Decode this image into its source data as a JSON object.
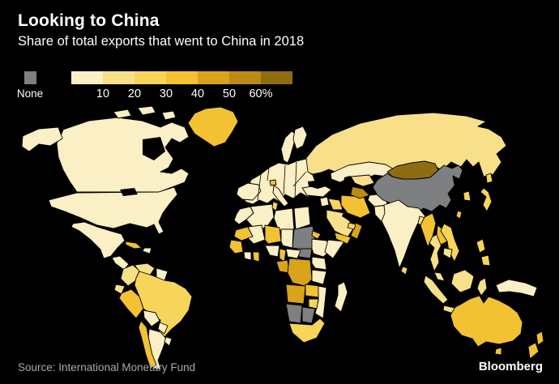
{
  "header": {
    "title": "Looking to China",
    "subtitle": "Share of total exports that went to China in 2018"
  },
  "legend": {
    "none_label": "None",
    "tick_labels": [
      "10",
      "20",
      "30",
      "40",
      "50",
      "60%"
    ]
  },
  "footer": {
    "source": "Source: International Monetary Fund",
    "brand": "Bloomberg"
  },
  "colors": {
    "background": "#000000",
    "none": "#7E7F81",
    "water": "#000000",
    "border": "#000000",
    "buckets": [
      "#FAEFC5",
      "#F8E08A",
      "#F7D45A",
      "#F2C233",
      "#D9A41B",
      "#BB8B15",
      "#8E6D10"
    ],
    "title_text": "#FFFFFF",
    "source_text": "#A9A9A9"
  },
  "chart_data": {
    "type": "choropleth_map",
    "title": "Looking to China",
    "subtitle": "Share of total exports that went to China in 2018",
    "unit": "percent of total exports going to China, 2018",
    "legend_bucket_ranges": [
      "0-10",
      "10-20",
      "20-30",
      "30-40",
      "40-50",
      "50-60",
      "60+"
    ],
    "no_data_color_is_background": true,
    "regions": {
      "greenland": {
        "name": "Greenland",
        "bucket": 3
      },
      "alaska": {
        "name": "Alaska (U.S.)",
        "bucket": 0
      },
      "canada": {
        "name": "Canada",
        "bucket": 0
      },
      "arctic-island-1": {
        "name": "Arctic islands",
        "bucket": 0
      },
      "arctic-island-2": {
        "name": "Arctic islands",
        "bucket": 0
      },
      "arctic-island-3": {
        "name": "Arctic islands",
        "bucket": 0
      },
      "usa": {
        "name": "United States",
        "bucket": 0
      },
      "mexico": {
        "name": "Mexico",
        "bucket": 0
      },
      "central-america": {
        "name": "Central America",
        "bucket": 0
      },
      "cuba": {
        "name": "Cuba",
        "bucket": 3
      },
      "hispaniola": {
        "name": "Hispaniola",
        "bucket": 0
      },
      "colombia": {
        "name": "Colombia",
        "bucket": 1
      },
      "venezuela": {
        "name": "Venezuela",
        "bucket": 1
      },
      "guyanas": {
        "name": "Guyanas",
        "bucket": 0
      },
      "ecuador": {
        "name": "Ecuador",
        "bucket": 1
      },
      "peru": {
        "name": "Peru",
        "bucket": 3
      },
      "brazil": {
        "name": "Brazil",
        "bucket": 2
      },
      "bolivia": {
        "name": "Bolivia",
        "bucket": 0
      },
      "paraguay": {
        "name": "Paraguay",
        "bucket": 0
      },
      "chile": {
        "name": "Chile",
        "bucket": 3
      },
      "argentina": {
        "name": "Argentina",
        "bucket": 0
      },
      "uruguay": {
        "name": "Uruguay",
        "bucket": 0
      },
      "sweden": {
        "name": "Sweden",
        "bucket": 0
      },
      "finland": {
        "name": "Finland",
        "bucket": 0
      },
      "europe-main": {
        "name": "Continental Europe",
        "bucket": 0
      },
      "iberia": {
        "name": "Spain and Portugal",
        "bucket": 0
      },
      "italy": {
        "name": "Italy",
        "bucket": 0
      },
      "switzerland": {
        "name": "Switzerland",
        "bucket": 3
      },
      "morocco": {
        "name": "Morocco",
        "bucket": 0
      },
      "algeria": {
        "name": "Algeria",
        "bucket": 0
      },
      "tunisia": {
        "name": "Tunisia",
        "bucket": 2
      },
      "libya": {
        "name": "Libya",
        "bucket": 0
      },
      "egypt": {
        "name": "Egypt",
        "bucket": 0
      },
      "mauritania": {
        "name": "Mauritania",
        "bucket": 3
      },
      "mali": {
        "name": "Mali",
        "bucket": 0
      },
      "niger": {
        "name": "Niger",
        "bucket": 3
      },
      "chad": {
        "name": "Chad",
        "bucket": 0
      },
      "sudan": {
        "name": "Sudan",
        "bucket": "none"
      },
      "south-sudan": {
        "name": "South Sudan",
        "bucket": "none"
      },
      "eritrea": {
        "name": "Eritrea",
        "bucket": 3
      },
      "ethiopia": {
        "name": "Ethiopia",
        "bucket": 0
      },
      "somalia": {
        "name": "Somalia",
        "bucket": 0
      },
      "senegal-guinea": {
        "name": "Senegal and Guinea",
        "bucket": 3
      },
      "ivory-coast": {
        "name": "Cote d'Ivoire",
        "bucket": 0
      },
      "ghana": {
        "name": "Ghana",
        "bucket": 3
      },
      "nigeria": {
        "name": "Nigeria",
        "bucket": 0
      },
      "cameroon": {
        "name": "Cameroon",
        "bucket": 3
      },
      "central-african-republic": {
        "name": "Central African Republic",
        "bucket": 0
      },
      "gabon-congo": {
        "name": "Gabon and Congo",
        "bucket": 4
      },
      "drc": {
        "name": "Democratic Republic of the Congo",
        "bucket": 4
      },
      "uganda-kenya": {
        "name": "Uganda and Kenya",
        "bucket": 0
      },
      "tanzania": {
        "name": "Tanzania",
        "bucket": 0
      },
      "angola": {
        "name": "Angola",
        "bucket": 4
      },
      "zambia": {
        "name": "Zambia",
        "bucket": 3
      },
      "mozambique": {
        "name": "Mozambique",
        "bucket": 0
      },
      "zimbabwe": {
        "name": "Zimbabwe",
        "bucket": 2
      },
      "namibia": {
        "name": "Namibia",
        "bucket": "none"
      },
      "botswana": {
        "name": "Botswana",
        "bucket": "none"
      },
      "south-africa": {
        "name": "South Africa",
        "bucket": 2
      },
      "madagascar": {
        "name": "Madagascar",
        "bucket": 0
      },
      "turkey": {
        "name": "Turkey",
        "bucket": 0
      },
      "levant": {
        "name": "Levant",
        "bucket": 0
      },
      "iraq": {
        "name": "Iraq",
        "bucket": 2
      },
      "iran": {
        "name": "Iran",
        "bucket": 3
      },
      "saudi-arabia": {
        "name": "Saudi Arabia",
        "bucket": 1
      },
      "yemen": {
        "name": "Yemen",
        "bucket": 3
      },
      "oman": {
        "name": "Oman",
        "bucket": 4
      },
      "uae": {
        "name": "United Arab Emirates",
        "bucket": 2
      },
      "kazakhstan": {
        "name": "Kazakhstan",
        "bucket": 0
      },
      "uzbekistan": {
        "name": "Uzbekistan",
        "bucket": 1
      },
      "turkmenistan": {
        "name": "Turkmenistan",
        "bucket": 5
      },
      "afghanistan": {
        "name": "Afghanistan",
        "bucket": 0
      },
      "pakistan": {
        "name": "Pakistan",
        "bucket": 0
      },
      "india": {
        "name": "India",
        "bucket": 0
      },
      "sri-lanka": {
        "name": "Sri Lanka",
        "bucket": 2
      },
      "bangladesh": {
        "name": "Bangladesh",
        "bucket": 1
      },
      "russia": {
        "name": "Russia",
        "bucket": 1
      },
      "mongolia": {
        "name": "Mongolia",
        "bucket": 6
      },
      "china": {
        "name": "China",
        "bucket": "none"
      },
      "taiwan": {
        "name": "Taiwan",
        "bucket": 3
      },
      "south-korea": {
        "name": "South Korea",
        "bucket": 2
      },
      "japan": {
        "name": "Japan",
        "bucket": 2
      },
      "myanmar": {
        "name": "Myanmar",
        "bucket": 3
      },
      "thailand": {
        "name": "Thailand",
        "bucket": 1
      },
      "laos": {
        "name": "Laos",
        "bucket": 3
      },
      "vietnam": {
        "name": "Vietnam",
        "bucket": 2
      },
      "cambodia": {
        "name": "Cambodia",
        "bucket": 1
      },
      "malaysia": {
        "name": "Malaysia",
        "bucket": 1
      },
      "sumatra": {
        "name": "Indonesia (Sumatra)",
        "bucket": 1
      },
      "java": {
        "name": "Indonesia (Java)",
        "bucket": 1
      },
      "borneo": {
        "name": "Borneo",
        "bucket": 1
      },
      "sulawesi": {
        "name": "Indonesia (Sulawesi)",
        "bucket": 1
      },
      "philippines": {
        "name": "Philippines",
        "bucket": 2
      },
      "new-guinea": {
        "name": "New Guinea",
        "bucket": 0
      },
      "australia": {
        "name": "Australia",
        "bucket": 3
      },
      "tasmania": {
        "name": "Tasmania",
        "bucket": 3
      },
      "new-zealand": {
        "name": "New Zealand",
        "bucket": 3
      }
    }
  }
}
